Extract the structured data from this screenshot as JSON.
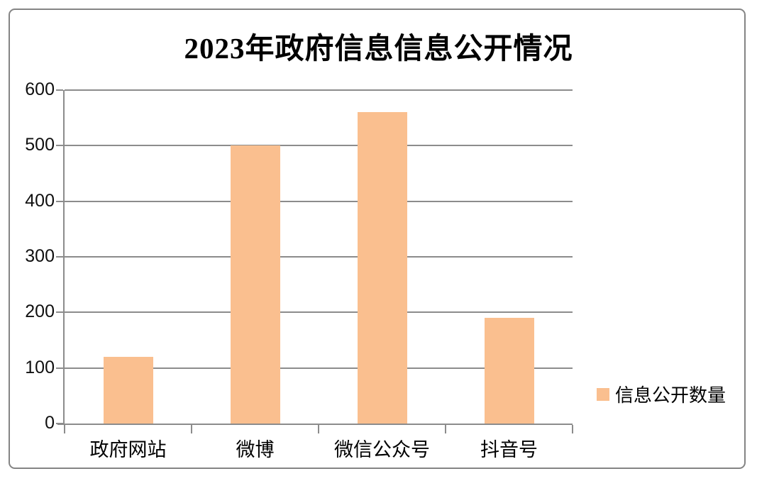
{
  "chart_data": {
    "type": "bar",
    "title": "2023年政府信息信息公开情况",
    "categories": [
      "政府网站",
      "微博",
      "微信公众号",
      "抖音号"
    ],
    "series": [
      {
        "name": "信息公开数量",
        "values": [
          120,
          500,
          560,
          190
        ]
      }
    ],
    "xlabel": "",
    "ylabel": "",
    "ylim": [
      0,
      600
    ],
    "yticks": [
      0,
      100,
      200,
      300,
      400,
      500,
      600
    ],
    "grid": true,
    "legend_position": "right",
    "colors": {
      "bar": "#FABF8F",
      "gridline": "#8C8C8C",
      "axis": "#8C8C8C",
      "border": "#848484",
      "background": "#FFFFFF",
      "text": "#000000"
    }
  }
}
